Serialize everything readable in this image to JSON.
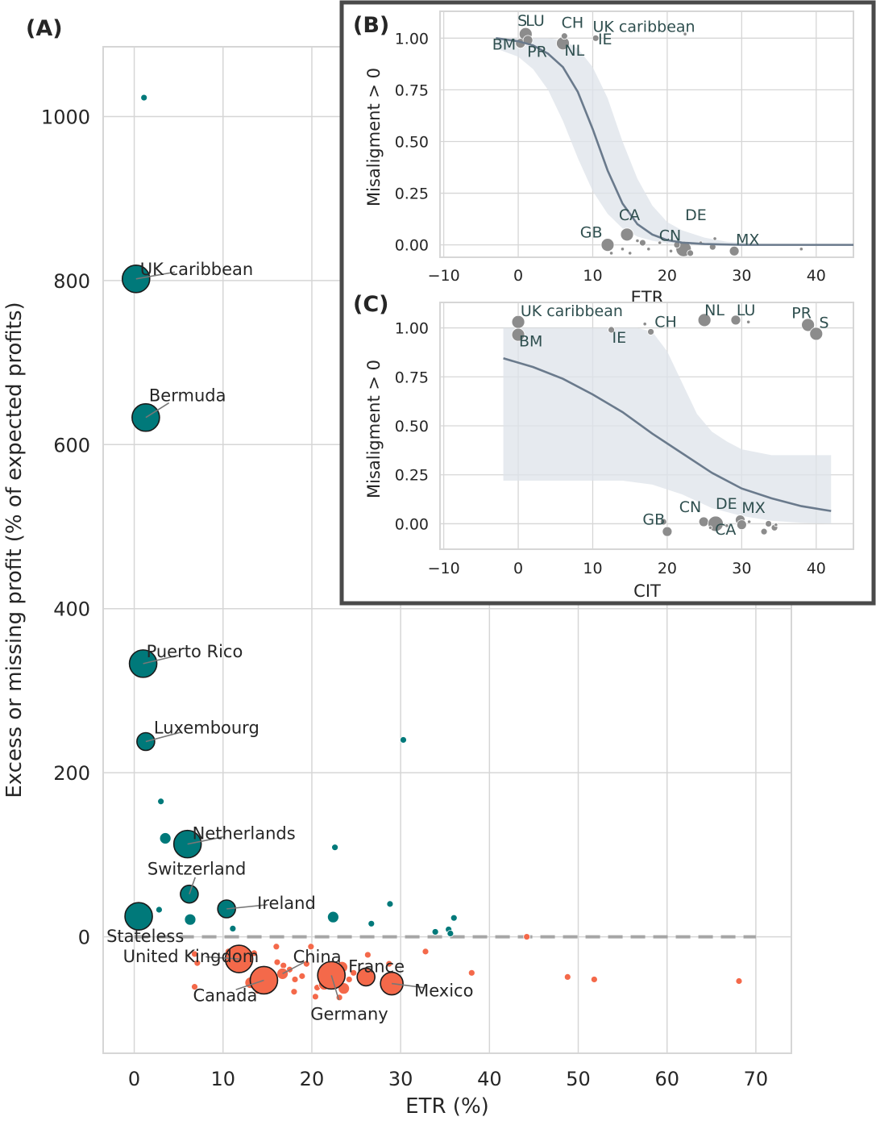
{
  "colors": {
    "positive": "#00797a",
    "negative": "#f4694a",
    "inset_point": "#8c8c8c",
    "curve": "#6a7a8c",
    "band": "#dde3e9",
    "grid": "#d6d6d6",
    "zero_line": "#a6a6a6",
    "inset_border": "#4a4a4a",
    "inset_text": "#2f4f4f"
  },
  "chart_data": [
    {
      "id": "A",
      "type": "scatter",
      "panel_label": "(A)",
      "xlabel": "ETR (%)",
      "ylabel": "Excess or missing profit (% of expected profits)",
      "xlim": [
        -3.5,
        74
      ],
      "ylim": [
        -142,
        1085
      ],
      "x_ticks": [
        0,
        10,
        20,
        30,
        40,
        50,
        60,
        70
      ],
      "y_ticks": [
        0,
        200,
        400,
        600,
        800,
        1000
      ],
      "grid": true,
      "zero_line": "dashed",
      "points": [
        {
          "x": 1.1,
          "y": 1023,
          "size": 1,
          "sign": "pos"
        },
        {
          "x": 0.2,
          "y": 802,
          "size": 3,
          "sign": "pos",
          "label": "UK caribbean"
        },
        {
          "x": 1.3,
          "y": 633,
          "size": 3,
          "sign": "pos",
          "label": "Bermuda"
        },
        {
          "x": 1.0,
          "y": 333,
          "size": 3,
          "sign": "pos",
          "label": "Puerto Rico"
        },
        {
          "x": 1.3,
          "y": 238,
          "size": 2,
          "sign": "pos",
          "label": "Luxembourg"
        },
        {
          "x": 30.3,
          "y": 240,
          "size": 1,
          "sign": "pos"
        },
        {
          "x": 3.0,
          "y": 165,
          "size": 1,
          "sign": "pos"
        },
        {
          "x": 3.5,
          "y": 120,
          "size": 1.5,
          "sign": "pos"
        },
        {
          "x": 6.0,
          "y": 113,
          "size": 3,
          "sign": "pos",
          "label": "Netherlands"
        },
        {
          "x": 22.6,
          "y": 109,
          "size": 1,
          "sign": "pos"
        },
        {
          "x": 6.2,
          "y": 52,
          "size": 2,
          "sign": "pos",
          "label": "Switzerland"
        },
        {
          "x": 10.4,
          "y": 34,
          "size": 2,
          "sign": "pos",
          "label": "Ireland"
        },
        {
          "x": 28.8,
          "y": 40,
          "size": 1,
          "sign": "pos"
        },
        {
          "x": 2.8,
          "y": 33,
          "size": 1,
          "sign": "pos"
        },
        {
          "x": 22.4,
          "y": 24,
          "size": 1.5,
          "sign": "pos"
        },
        {
          "x": 6.3,
          "y": 21,
          "size": 1.5,
          "sign": "pos"
        },
        {
          "x": 0.5,
          "y": 25,
          "size": 3,
          "sign": "pos",
          "label": "Stateless"
        },
        {
          "x": 36.0,
          "y": 23,
          "size": 1,
          "sign": "pos"
        },
        {
          "x": 26.7,
          "y": 16,
          "size": 1,
          "sign": "pos"
        },
        {
          "x": 11.1,
          "y": 10,
          "size": 1,
          "sign": "pos"
        },
        {
          "x": 33.9,
          "y": 6,
          "size": 1,
          "sign": "pos"
        },
        {
          "x": 35.4,
          "y": 9,
          "size": 1,
          "sign": "pos"
        },
        {
          "x": 35.6,
          "y": 4,
          "size": 1,
          "sign": "pos"
        },
        {
          "x": 11.8,
          "y": -27,
          "size": 3,
          "sign": "neg",
          "label": "United Kingdom"
        },
        {
          "x": 14.6,
          "y": -53,
          "size": 3,
          "sign": "neg",
          "label": "Canada"
        },
        {
          "x": 22.2,
          "y": -47,
          "size": 3,
          "sign": "neg",
          "label": "Germany"
        },
        {
          "x": 26.1,
          "y": -49,
          "size": 2,
          "sign": "neg",
          "label": "France"
        },
        {
          "x": 29.0,
          "y": -57,
          "size": 2.5,
          "sign": "neg",
          "label": "Mexico"
        },
        {
          "x": 16.7,
          "y": -45,
          "size": 1.5,
          "sign": "neg",
          "label": "China"
        },
        {
          "x": 6.8,
          "y": -21,
          "size": 1,
          "sign": "neg"
        },
        {
          "x": 7.1,
          "y": -32,
          "size": 1,
          "sign": "neg"
        },
        {
          "x": 6.8,
          "y": -61,
          "size": 1,
          "sign": "neg"
        },
        {
          "x": 10.6,
          "y": -18,
          "size": 1,
          "sign": "neg"
        },
        {
          "x": 13.5,
          "y": -20,
          "size": 1,
          "sign": "neg"
        },
        {
          "x": 16.0,
          "y": -12,
          "size": 1,
          "sign": "neg"
        },
        {
          "x": 16.1,
          "y": -31,
          "size": 1,
          "sign": "neg"
        },
        {
          "x": 16.8,
          "y": -35,
          "size": 1,
          "sign": "neg"
        },
        {
          "x": 17.5,
          "y": -40,
          "size": 1,
          "sign": "neg"
        },
        {
          "x": 18.1,
          "y": -52,
          "size": 1,
          "sign": "neg"
        },
        {
          "x": 18.9,
          "y": -48,
          "size": 1,
          "sign": "neg"
        },
        {
          "x": 19.4,
          "y": -33,
          "size": 1,
          "sign": "neg"
        },
        {
          "x": 19.9,
          "y": -12,
          "size": 1,
          "sign": "neg"
        },
        {
          "x": 13.1,
          "y": -56,
          "size": 1.5,
          "sign": "neg"
        },
        {
          "x": 13.9,
          "y": -66,
          "size": 1,
          "sign": "neg"
        },
        {
          "x": 18.0,
          "y": -67,
          "size": 1,
          "sign": "neg"
        },
        {
          "x": 20.6,
          "y": -62,
          "size": 1,
          "sign": "neg"
        },
        {
          "x": 21.4,
          "y": -58,
          "size": 1.5,
          "sign": "neg"
        },
        {
          "x": 21.9,
          "y": -55,
          "size": 1.5,
          "sign": "neg"
        },
        {
          "x": 22.8,
          "y": -50,
          "size": 1.5,
          "sign": "neg"
        },
        {
          "x": 23.4,
          "y": -37,
          "size": 1.5,
          "sign": "neg"
        },
        {
          "x": 23.6,
          "y": -63,
          "size": 1.5,
          "sign": "neg"
        },
        {
          "x": 24.2,
          "y": -52,
          "size": 1,
          "sign": "neg"
        },
        {
          "x": 24.7,
          "y": -44,
          "size": 1,
          "sign": "neg"
        },
        {
          "x": 23.1,
          "y": -74,
          "size": 1,
          "sign": "neg"
        },
        {
          "x": 20.4,
          "y": -73,
          "size": 1,
          "sign": "neg"
        },
        {
          "x": 26.3,
          "y": -22,
          "size": 1,
          "sign": "neg"
        },
        {
          "x": 28.7,
          "y": -33,
          "size": 1,
          "sign": "neg"
        },
        {
          "x": 32.8,
          "y": -18,
          "size": 1,
          "sign": "neg"
        },
        {
          "x": 38.0,
          "y": -44,
          "size": 1,
          "sign": "neg"
        },
        {
          "x": 44.2,
          "y": 0,
          "size": 0.6,
          "sign": "neg"
        },
        {
          "x": 48.8,
          "y": -49,
          "size": 1,
          "sign": "neg"
        },
        {
          "x": 51.8,
          "y": -52,
          "size": 1,
          "sign": "neg"
        },
        {
          "x": 68.1,
          "y": -54,
          "size": 1,
          "sign": "neg"
        }
      ]
    },
    {
      "id": "B",
      "type": "scatter",
      "panel_label": "(B)",
      "xlabel": "ETR",
      "ylabel": "Misaligment > 0",
      "xlim": [
        -10.5,
        45
      ],
      "ylim": [
        -0.06,
        1.13
      ],
      "x_ticks": [
        -10,
        0,
        10,
        20,
        30,
        40
      ],
      "y_ticks": [
        0.0,
        0.25,
        0.5,
        0.75,
        1.0
      ],
      "y_tick_labels": [
        "0.00",
        "0.25",
        "0.50",
        "0.75",
        "1.00"
      ],
      "grid": true,
      "fit_curve": [
        [
          -3,
          1.0
        ],
        [
          0,
          0.985
        ],
        [
          2,
          0.965
        ],
        [
          4,
          0.925
        ],
        [
          6,
          0.86
        ],
        [
          8,
          0.74
        ],
        [
          10,
          0.56
        ],
        [
          12,
          0.36
        ],
        [
          14,
          0.2
        ],
        [
          16,
          0.1
        ],
        [
          18,
          0.05
        ],
        [
          20,
          0.023
        ],
        [
          22,
          0.011
        ],
        [
          25,
          0.004
        ],
        [
          30,
          0.0
        ],
        [
          45,
          0.0
        ]
      ],
      "band_upper": [
        [
          -3,
          1.0
        ],
        [
          1,
          1.0
        ],
        [
          4,
          1.0
        ],
        [
          6,
          0.99
        ],
        [
          8,
          0.95
        ],
        [
          10,
          0.86
        ],
        [
          12,
          0.71
        ],
        [
          14,
          0.5
        ],
        [
          16,
          0.32
        ],
        [
          18,
          0.19
        ],
        [
          20,
          0.11
        ],
        [
          22,
          0.07
        ],
        [
          25,
          0.035
        ],
        [
          28,
          0.015
        ],
        [
          32,
          0.005
        ],
        [
          35,
          0.0
        ]
      ],
      "band_lower": [
        [
          -3,
          0.95
        ],
        [
          0,
          0.91
        ],
        [
          2,
          0.85
        ],
        [
          4,
          0.75
        ],
        [
          6,
          0.6
        ],
        [
          8,
          0.42
        ],
        [
          10,
          0.26
        ],
        [
          12,
          0.15
        ],
        [
          14,
          0.08
        ],
        [
          16,
          0.04
        ],
        [
          18,
          0.02
        ],
        [
          20,
          0.008
        ],
        [
          24,
          0.0
        ],
        [
          35,
          0.0
        ]
      ],
      "points": [
        {
          "x": 1.0,
          "y": 1.02,
          "size": 2
        },
        {
          "x": 0.3,
          "y": 0.975,
          "size": 1.5
        },
        {
          "x": 1.3,
          "y": 0.99,
          "size": 1.5
        },
        {
          "x": 6.0,
          "y": 0.975,
          "size": 2
        },
        {
          "x": 6.2,
          "y": 1.01,
          "size": 1
        },
        {
          "x": 10.4,
          "y": 1.0,
          "size": 1
        },
        {
          "x": 22.4,
          "y": 1.02,
          "size": 0.6
        },
        {
          "x": 12.0,
          "y": 0.0,
          "size": 2
        },
        {
          "x": 14.6,
          "y": 0.05,
          "size": 2
        },
        {
          "x": 22.2,
          "y": -0.02,
          "size": 2.2
        },
        {
          "x": 29.0,
          "y": -0.03,
          "size": 1.5
        },
        {
          "x": 16.7,
          "y": 0.01,
          "size": 0.8
        },
        {
          "x": 12.5,
          "y": -0.04,
          "size": 0.6
        },
        {
          "x": 14.0,
          "y": -0.02,
          "size": 0.6
        },
        {
          "x": 15.0,
          "y": -0.04,
          "size": 0.6
        },
        {
          "x": 16.0,
          "y": 0.02,
          "size": 0.6
        },
        {
          "x": 17.5,
          "y": -0.02,
          "size": 0.6
        },
        {
          "x": 19.0,
          "y": 0.01,
          "size": 0.6
        },
        {
          "x": 20.5,
          "y": -0.03,
          "size": 0.6
        },
        {
          "x": 21.3,
          "y": 0.0,
          "size": 0.8
        },
        {
          "x": 23.1,
          "y": -0.04,
          "size": 0.8
        },
        {
          "x": 24.5,
          "y": 0.01,
          "size": 0.6
        },
        {
          "x": 26.1,
          "y": -0.01,
          "size": 0.8
        },
        {
          "x": 26.4,
          "y": 0.03,
          "size": 0.6
        },
        {
          "x": 38.0,
          "y": -0.02,
          "size": 0.6
        }
      ],
      "labels": [
        {
          "text": "S",
          "x": -0.1,
          "y": 1.06
        },
        {
          "text": "LU",
          "x": 1.0,
          "y": 1.06
        },
        {
          "text": "CH",
          "x": 5.8,
          "y": 1.05
        },
        {
          "text": "UK caribbean",
          "x": 10.0,
          "y": 1.03
        },
        {
          "text": "IE",
          "x": 10.7,
          "y": 0.97
        },
        {
          "text": "BM",
          "x": -3.5,
          "y": 0.945
        },
        {
          "text": "PR",
          "x": 1.2,
          "y": 0.91
        },
        {
          "text": "NL",
          "x": 6.2,
          "y": 0.915
        },
        {
          "text": "GB",
          "x": 8.3,
          "y": 0.035
        },
        {
          "text": "CA",
          "x": 13.5,
          "y": 0.12
        },
        {
          "text": "CN",
          "x": 18.9,
          "y": 0.02
        },
        {
          "text": "DE",
          "x": 22.4,
          "y": 0.12
        },
        {
          "text": "MX",
          "x": 29.2,
          "y": 0.0
        }
      ]
    },
    {
      "id": "C",
      "type": "scatter",
      "panel_label": "(C)",
      "xlabel": "CIT",
      "ylabel": "Misaligment > 0",
      "xlim": [
        -10.5,
        45
      ],
      "ylim": [
        -0.13,
        1.13
      ],
      "x_ticks": [
        -10,
        0,
        10,
        20,
        30,
        40
      ],
      "y_ticks": [
        0.0,
        0.25,
        0.5,
        0.75,
        1.0
      ],
      "y_tick_labels": [
        "0.00",
        "0.25",
        "0.50",
        "0.75",
        "1.00"
      ],
      "grid": true,
      "fit_curve": [
        [
          -2,
          0.845
        ],
        [
          2,
          0.8
        ],
        [
          6,
          0.74
        ],
        [
          10,
          0.66
        ],
        [
          14,
          0.57
        ],
        [
          18,
          0.46
        ],
        [
          22,
          0.36
        ],
        [
          26,
          0.26
        ],
        [
          30,
          0.18
        ],
        [
          34,
          0.13
        ],
        [
          38,
          0.09
        ],
        [
          42,
          0.065
        ]
      ],
      "band_upper": [
        [
          -2,
          1.0
        ],
        [
          16,
          1.0
        ],
        [
          18,
          0.98
        ],
        [
          20,
          0.88
        ],
        [
          22,
          0.72
        ],
        [
          24,
          0.56
        ],
        [
          26,
          0.47
        ],
        [
          28,
          0.42
        ],
        [
          30,
          0.38
        ],
        [
          34,
          0.35
        ],
        [
          38,
          0.35
        ],
        [
          42,
          0.35
        ]
      ],
      "band_lower": [
        [
          -2,
          0.22
        ],
        [
          10,
          0.22
        ],
        [
          14,
          0.22
        ],
        [
          18,
          0.2
        ],
        [
          22,
          0.15
        ],
        [
          26,
          0.08
        ],
        [
          30,
          0.04
        ],
        [
          34,
          0.015
        ],
        [
          38,
          0.005
        ],
        [
          42,
          0.0
        ]
      ],
      "points": [
        {
          "x": 0.0,
          "y": 1.03,
          "size": 2
        },
        {
          "x": 0.0,
          "y": 0.965,
          "size": 2
        },
        {
          "x": 12.5,
          "y": 0.99,
          "size": 1
        },
        {
          "x": 17.0,
          "y": 1.02,
          "size": 0.6
        },
        {
          "x": 17.8,
          "y": 0.98,
          "size": 1
        },
        {
          "x": 25.0,
          "y": 1.04,
          "size": 2
        },
        {
          "x": 29.2,
          "y": 1.04,
          "size": 1.5
        },
        {
          "x": 30.9,
          "y": 1.03,
          "size": 0.6
        },
        {
          "x": 38.9,
          "y": 1.015,
          "size": 2
        },
        {
          "x": 40.0,
          "y": 0.97,
          "size": 2
        },
        {
          "x": 20.0,
          "y": -0.04,
          "size": 1.5
        },
        {
          "x": 19.5,
          "y": 0.01,
          "size": 0.8
        },
        {
          "x": 24.9,
          "y": 0.01,
          "size": 1.5
        },
        {
          "x": 26.5,
          "y": 0.0,
          "size": 2.2
        },
        {
          "x": 29.8,
          "y": 0.02,
          "size": 1.5
        },
        {
          "x": 30.0,
          "y": -0.005,
          "size": 1.2
        },
        {
          "x": 33.0,
          "y": -0.04,
          "size": 1
        },
        {
          "x": 33.6,
          "y": 0.0,
          "size": 0.8
        },
        {
          "x": 34.4,
          "y": -0.02,
          "size": 0.8
        },
        {
          "x": 34.6,
          "y": -0.005,
          "size": 0.6
        },
        {
          "x": 28.0,
          "y": -0.01,
          "size": 0.6
        },
        {
          "x": 31.0,
          "y": 0.01,
          "size": 0.6
        },
        {
          "x": 25.8,
          "y": -0.02,
          "size": 0.6
        }
      ],
      "labels": [
        {
          "text": "UK caribbean",
          "x": 0.3,
          "y": 1.06
        },
        {
          "text": "BM",
          "x": 0.1,
          "y": 0.905
        },
        {
          "text": "CH",
          "x": 18.3,
          "y": 1.005
        },
        {
          "text": "IE",
          "x": 12.6,
          "y": 0.925
        },
        {
          "text": "NL",
          "x": 25.0,
          "y": 1.065
        },
        {
          "text": "LU",
          "x": 29.3,
          "y": 1.065
        },
        {
          "text": "PR",
          "x": 36.7,
          "y": 1.05
        },
        {
          "text": "S",
          "x": 40.4,
          "y": 1.0
        },
        {
          "text": "GB",
          "x": 16.7,
          "y": -0.005
        },
        {
          "text": "CN",
          "x": 21.6,
          "y": 0.06
        },
        {
          "text": "DE",
          "x": 26.5,
          "y": 0.075
        },
        {
          "text": "MX",
          "x": 30.0,
          "y": 0.055
        },
        {
          "text": "CA",
          "x": 26.4,
          "y": -0.055
        }
      ]
    }
  ]
}
